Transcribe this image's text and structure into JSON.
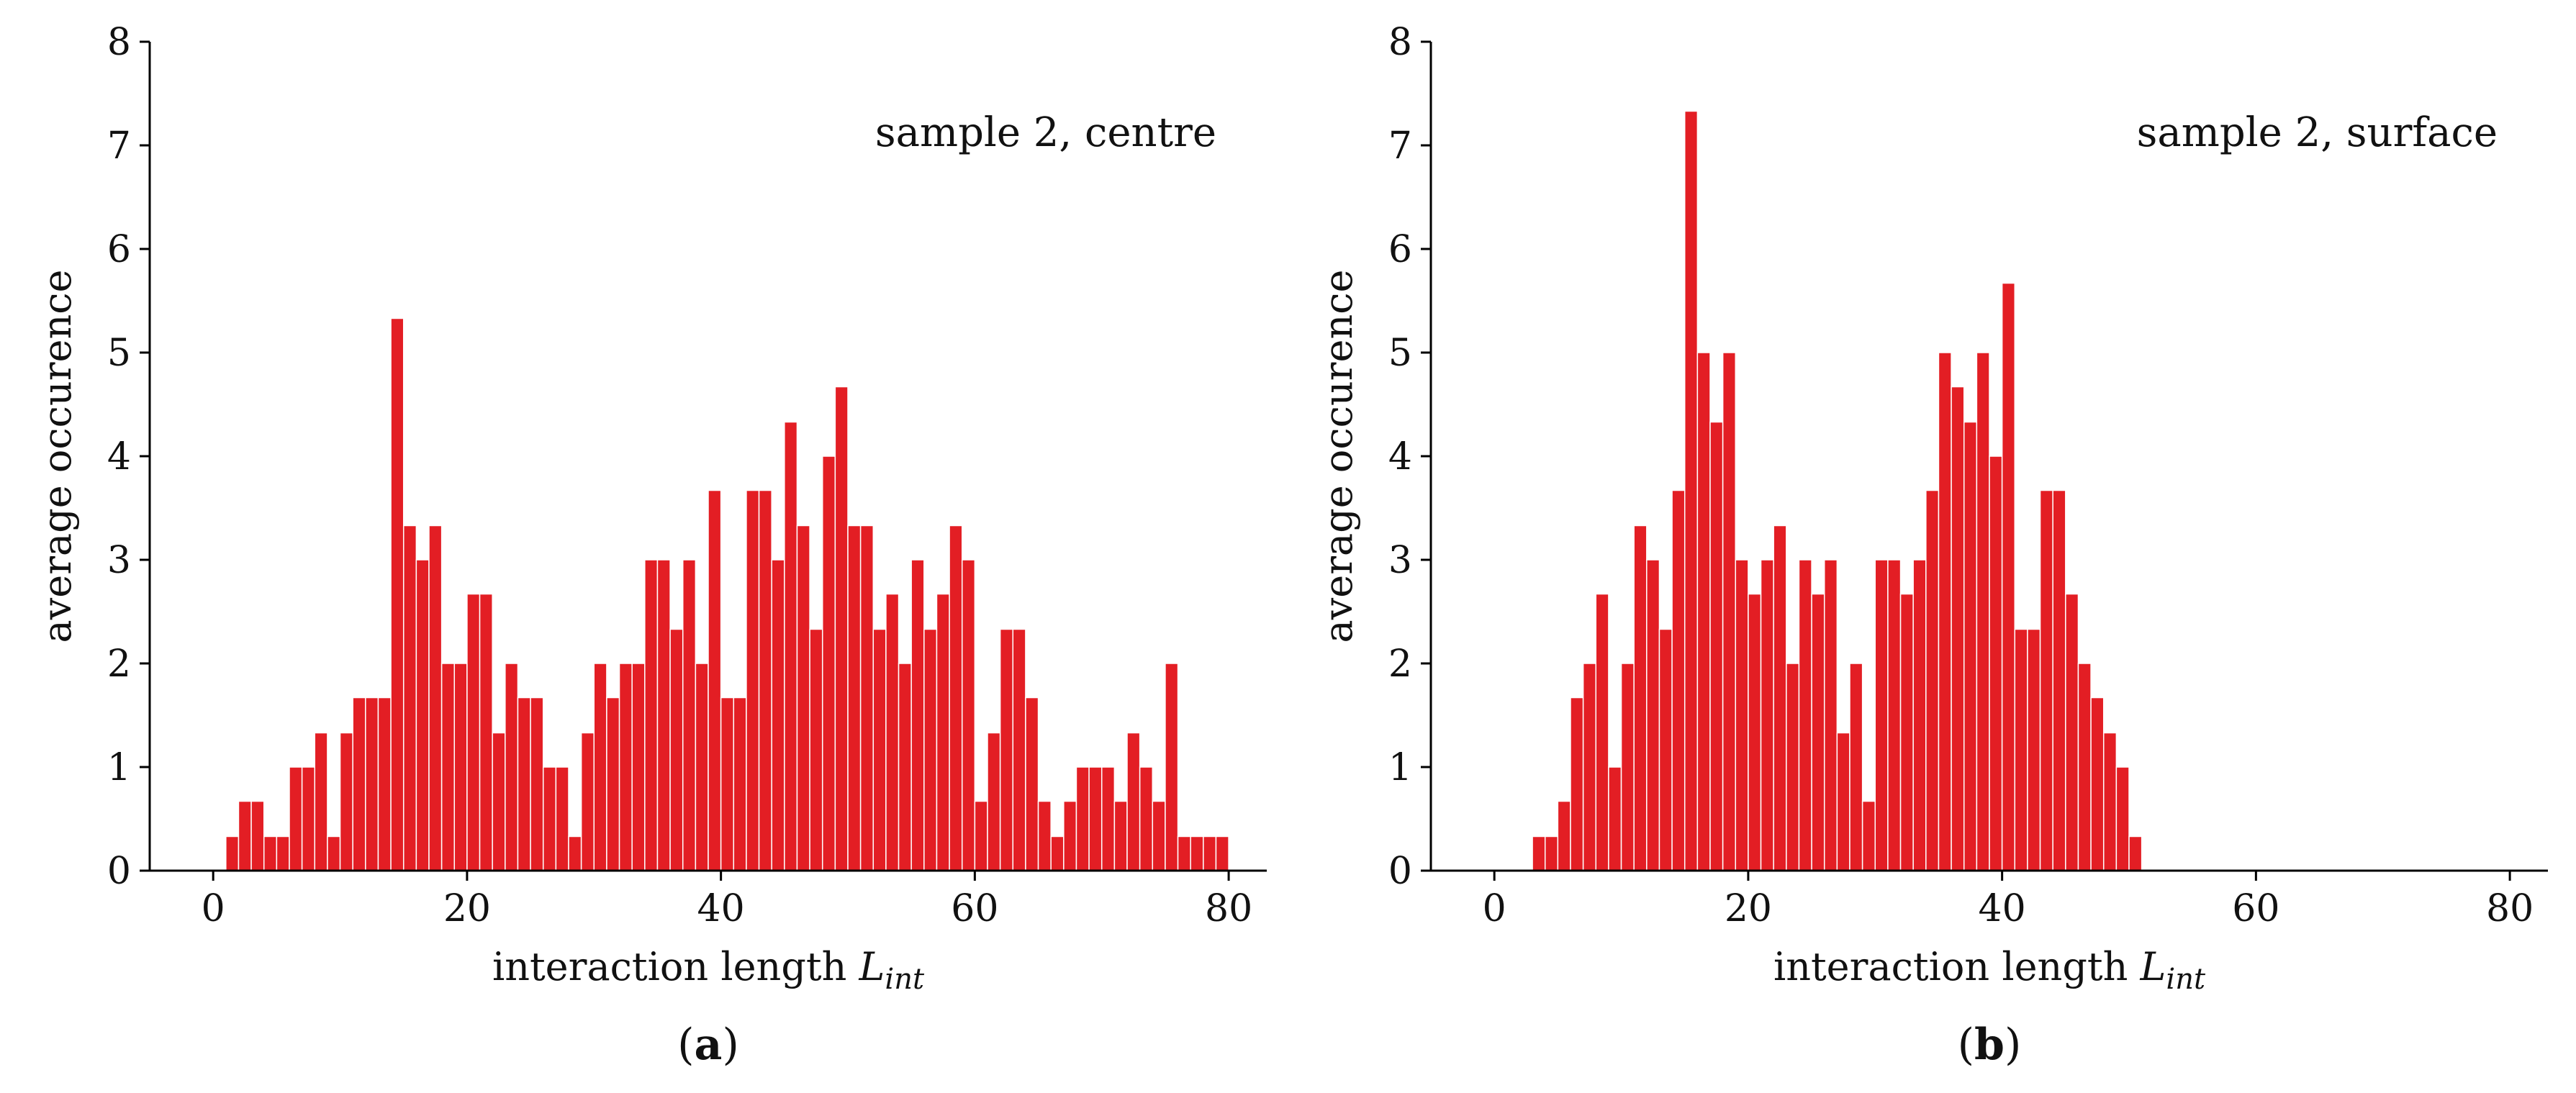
{
  "chart_data": [
    {
      "type": "bar",
      "panel_label": "a",
      "annotation": "sample 2, centre",
      "xlabel": "interaction length",
      "xlabel_symbol": "L",
      "xlabel_subscript": "int",
      "ylabel": "average occurence",
      "xlim": [
        -5,
        83
      ],
      "ylim": [
        0,
        8
      ],
      "xticks": [
        0,
        20,
        40,
        60,
        80
      ],
      "yticks": [
        0,
        1,
        2,
        3,
        4,
        5,
        6,
        7,
        8
      ],
      "bar_color": "#e31e24",
      "bin_width": 1,
      "bins_start": 1,
      "values": [
        0.33,
        0.67,
        0.67,
        0.33,
        0.33,
        1,
        1,
        1.33,
        0.33,
        1.33,
        1.67,
        1.67,
        1.67,
        5.33,
        3.33,
        3,
        3.33,
        2,
        2,
        2.67,
        2.67,
        1.33,
        2,
        1.67,
        1.67,
        1,
        1,
        0.33,
        1.33,
        2,
        1.67,
        2,
        2,
        3,
        3,
        2.33,
        3,
        2,
        3.67,
        1.67,
        1.67,
        3.67,
        3.67,
        3,
        4.33,
        3.33,
        2.33,
        4,
        4.67,
        3.33,
        3.33,
        2.33,
        2.67,
        2,
        3,
        2.33,
        2.67,
        3.33,
        3,
        0.67,
        1.33,
        2.33,
        2.33,
        1.67,
        0.67,
        0.33,
        0.67,
        1,
        1,
        1,
        0.67,
        1.33,
        1,
        0.67,
        2,
        0.33,
        0.33,
        0.33,
        0.33
      ]
    },
    {
      "type": "bar",
      "panel_label": "b",
      "annotation": "sample 2, surface",
      "xlabel": "interaction length",
      "xlabel_symbol": "L",
      "xlabel_subscript": "int",
      "ylabel": "average occurence",
      "xlim": [
        -5,
        83
      ],
      "ylim": [
        0,
        8
      ],
      "xticks": [
        0,
        20,
        40,
        60,
        80
      ],
      "yticks": [
        0,
        1,
        2,
        3,
        4,
        5,
        6,
        7,
        8
      ],
      "bar_color": "#e31e24",
      "bin_width": 1,
      "bins_start": 3,
      "values": [
        0.33,
        0.33,
        0.67,
        1.67,
        2,
        2.67,
        1,
        2,
        3.33,
        3,
        2.33,
        3.67,
        7.33,
        5,
        4.33,
        5,
        3,
        2.67,
        3,
        3.33,
        2,
        3,
        2.67,
        3,
        1.33,
        2,
        0.67,
        3,
        3,
        2.67,
        3,
        3.67,
        5,
        4.67,
        4.33,
        5,
        4,
        5.67,
        2.33,
        2.33,
        3.67,
        3.67,
        2.67,
        2,
        1.67,
        1.33,
        1,
        0.33
      ]
    }
  ]
}
